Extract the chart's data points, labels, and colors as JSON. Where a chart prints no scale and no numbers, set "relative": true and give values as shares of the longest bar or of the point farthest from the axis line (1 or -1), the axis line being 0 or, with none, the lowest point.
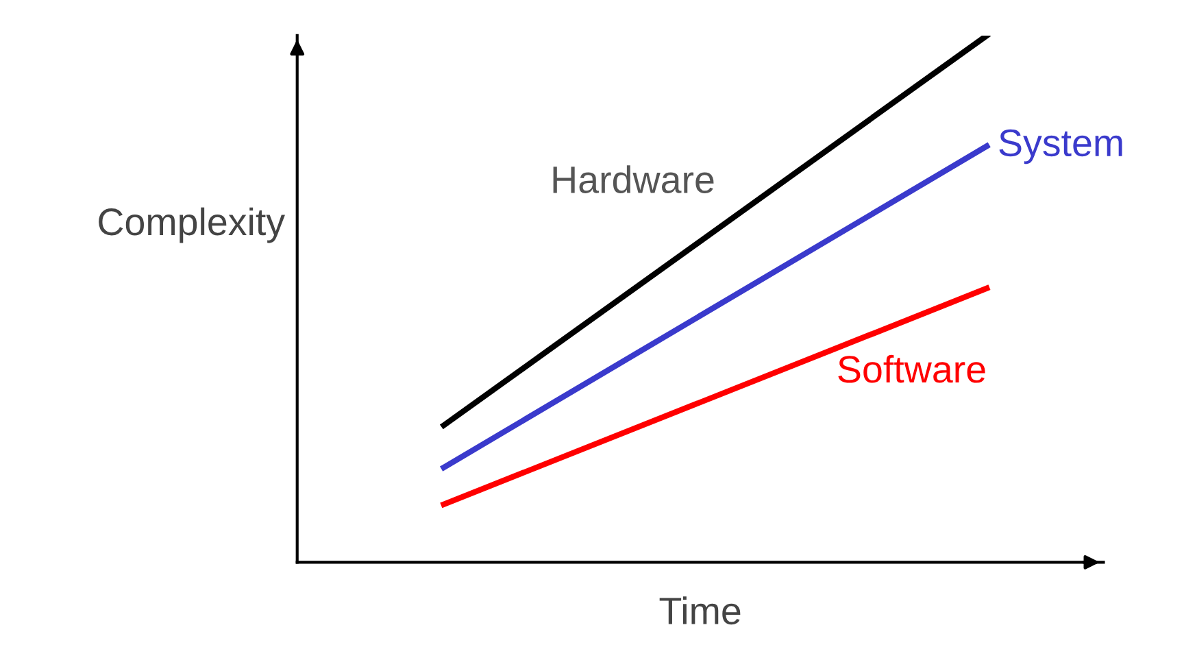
{
  "chart_data": {
    "type": "line",
    "relative": true,
    "xlabel": "Time",
    "ylabel": "Complexity",
    "categories": [
      null,
      null
    ],
    "series": [
      {
        "name": "Hardware",
        "color": "#000000",
        "values": [
          0.26,
          1.0
        ]
      },
      {
        "name": "System",
        "color": "#3a3acc",
        "values": [
          0.18,
          0.79
        ]
      },
      {
        "name": "Software",
        "color": "#ff0000",
        "values": [
          0.11,
          0.52
        ]
      }
    ],
    "legend": false,
    "marker": "none",
    "line_style": "solid"
  }
}
